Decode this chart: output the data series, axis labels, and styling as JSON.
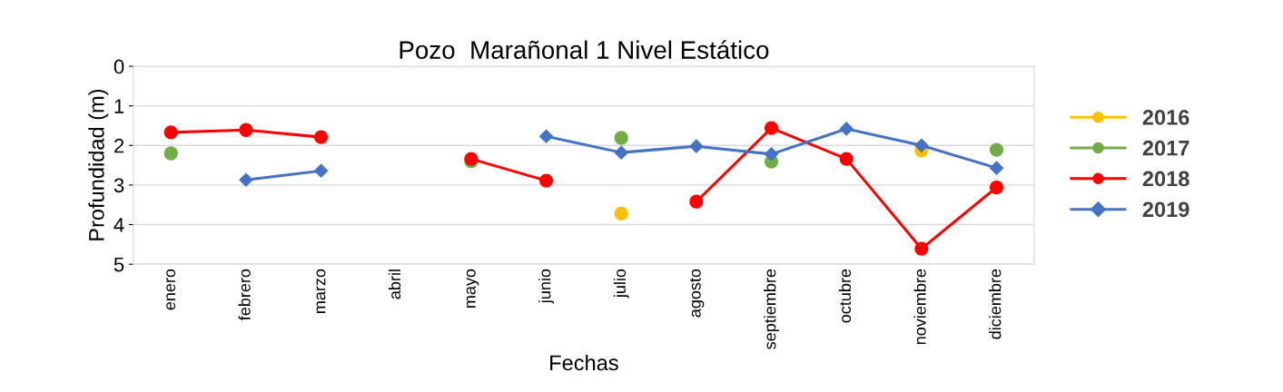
{
  "chart_data": {
    "type": "line",
    "title": "Pozo  Marañonal 1 Nivel Estático",
    "xlabel": "Fechas",
    "ylabel": "Profundidad (m)",
    "categories": [
      "enero",
      "febrero",
      "marzo",
      "abril",
      "mayo",
      "junio",
      "julio",
      "agosto",
      "septiembre",
      "octubre",
      "noviembre",
      "diciembre"
    ],
    "series": [
      {
        "name": "2016",
        "type": "scatter",
        "color": "#ffc000",
        "marker": "circle",
        "values": [
          null,
          null,
          null,
          null,
          null,
          null,
          3.72,
          null,
          null,
          null,
          2.13,
          null
        ]
      },
      {
        "name": "2017",
        "type": "scatter",
        "color": "#70ad47",
        "marker": "circle",
        "values": [
          2.2,
          null,
          null,
          null,
          2.4,
          null,
          1.81,
          null,
          2.41,
          null,
          null,
          2.11
        ]
      },
      {
        "name": "2018",
        "color": "#ff0000",
        "marker": "circle",
        "values": [
          1.67,
          1.61,
          1.79,
          null,
          2.34,
          2.89,
          null,
          3.42,
          1.56,
          2.34,
          4.61,
          3.06
        ]
      },
      {
        "name": "2019",
        "color": "#4472c4",
        "marker": "diamond",
        "values": [
          null,
          2.87,
          2.64,
          null,
          null,
          1.77,
          2.18,
          2.02,
          2.22,
          1.58,
          2.0,
          2.57
        ]
      }
    ],
    "ylim": [
      5,
      0
    ],
    "yticks": [
      0,
      1,
      2,
      3,
      4,
      5
    ],
    "grid": "y",
    "legend": "right",
    "line_style": "solid"
  }
}
